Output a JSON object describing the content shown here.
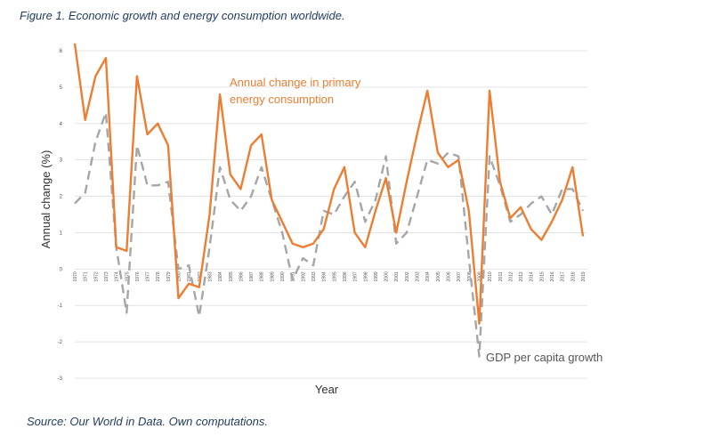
{
  "figure_title": "Figure 1. Economic growth and energy consumption worldwide.",
  "source_note": "Source: Our World in Data. Own computations.",
  "colors": {
    "energy": "#ed7d31",
    "gdp": "#a6a6a6",
    "grid": "#e3e3e3"
  },
  "chart_data": {
    "type": "line",
    "xlabel": "Year",
    "ylabel": "Annual change (%)",
    "ylim": [
      -3,
      6
    ],
    "yticks": [
      -3,
      -2,
      -1,
      0,
      1,
      2,
      3,
      4,
      5,
      6
    ],
    "grid": true,
    "x": [
      1970,
      1971,
      1972,
      1973,
      1974,
      1975,
      1976,
      1977,
      1978,
      1979,
      1980,
      1981,
      1982,
      1983,
      1984,
      1985,
      1986,
      1987,
      1988,
      1989,
      1990,
      1991,
      1992,
      1993,
      1994,
      1995,
      1996,
      1997,
      1998,
      1999,
      2000,
      2001,
      2002,
      2003,
      2004,
      2005,
      2006,
      2007,
      2008,
      2009,
      2010,
      2011,
      2012,
      2013,
      2014,
      2015,
      2016,
      2017,
      2018,
      2019
    ],
    "series": [
      {
        "name": "Annual change in primary energy consumption",
        "values": [
          6.2,
          4.1,
          5.3,
          5.8,
          0.6,
          0.5,
          5.3,
          3.7,
          4.0,
          3.4,
          -0.8,
          -0.4,
          -0.5,
          1.5,
          4.8,
          2.6,
          2.2,
          3.4,
          3.7,
          1.9,
          1.3,
          0.7,
          0.6,
          0.7,
          1.1,
          2.2,
          2.8,
          1.0,
          0.6,
          1.6,
          2.5,
          1.0,
          2.4,
          3.7,
          4.9,
          3.2,
          2.8,
          3.0,
          1.6,
          -1.5,
          4.9,
          2.4,
          1.4,
          1.7,
          1.1,
          0.8,
          1.3,
          1.9,
          2.8,
          0.9
        ]
      },
      {
        "name": "GDP per capita growth",
        "values": [
          1.8,
          2.1,
          3.5,
          4.3,
          0.6,
          -1.2,
          3.4,
          2.3,
          2.3,
          2.4,
          0.0,
          0.1,
          -1.3,
          0.6,
          2.8,
          1.9,
          1.6,
          2.0,
          2.8,
          1.9,
          1.0,
          -0.3,
          0.3,
          0.1,
          1.6,
          1.5,
          2.0,
          2.4,
          1.3,
          1.9,
          3.1,
          0.7,
          1.0,
          2.0,
          3.0,
          2.9,
          3.2,
          3.1,
          0.3,
          -2.4,
          3.1,
          2.3,
          1.3,
          1.5,
          1.8,
          2.0,
          1.5,
          2.2,
          2.2,
          1.6
        ]
      }
    ],
    "annotations": [
      {
        "series": 0,
        "text": [
          "Annual change in primary",
          "energy consumption"
        ]
      },
      {
        "series": 1,
        "text": "GDP per capita growth"
      }
    ]
  }
}
